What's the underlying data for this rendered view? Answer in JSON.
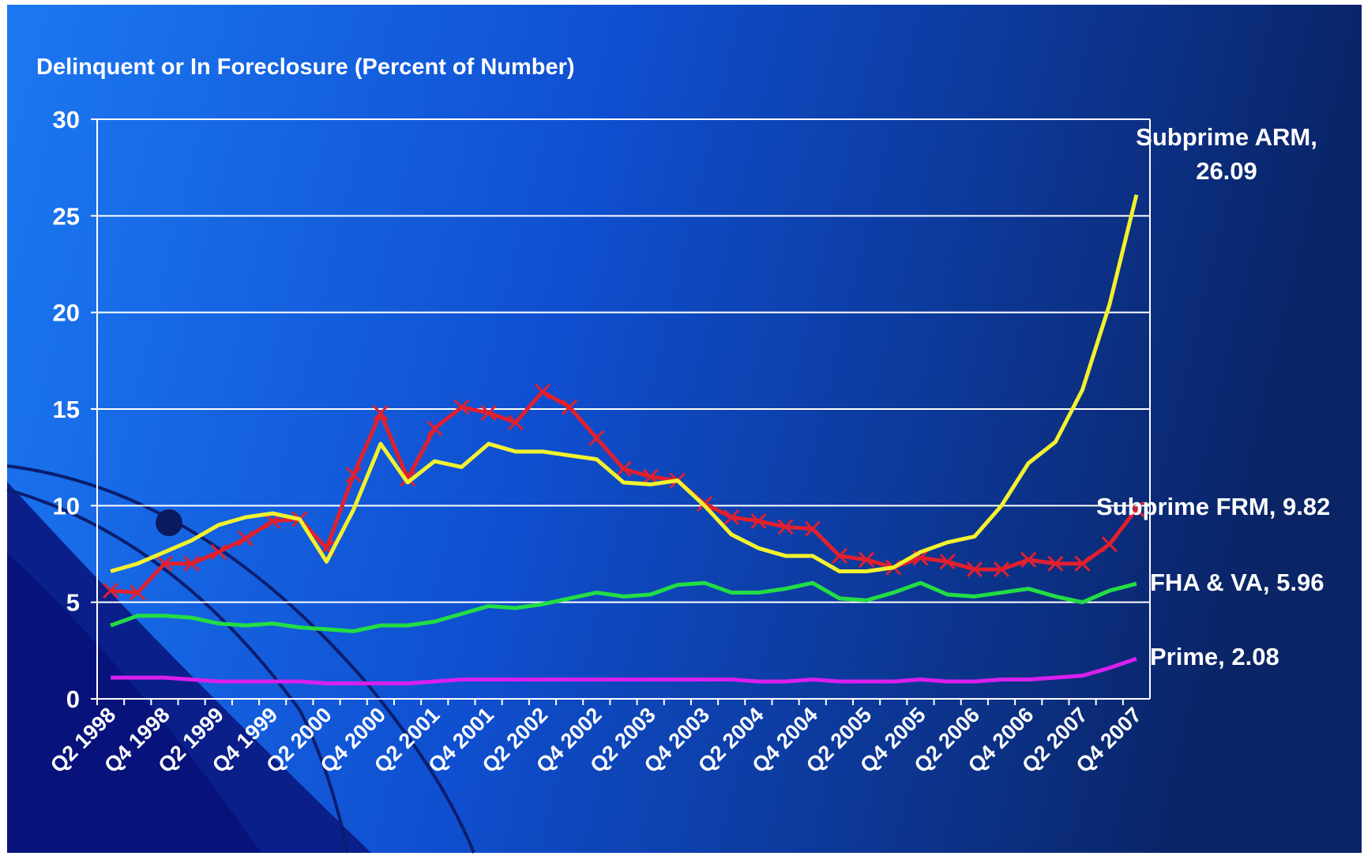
{
  "chart_data": {
    "type": "line",
    "title": "Delinquent or In Foreclosure (Percent of Number)",
    "categories": [
      "Q2 1998",
      null,
      "Q4 1998",
      null,
      "Q2 1999",
      null,
      "Q4 1999",
      null,
      "Q2 2000",
      null,
      "Q4 2000",
      null,
      "Q2 2001",
      null,
      "Q4 2001",
      null,
      "Q2 2002",
      null,
      "Q4 2002",
      null,
      "Q2 2003",
      null,
      "Q4 2003",
      null,
      "Q2 2004",
      null,
      "Q4 2004",
      null,
      "Q2 2005",
      null,
      "Q4 2005",
      null,
      "Q2 2006",
      null,
      "Q4 2006",
      null,
      "Q2 2007",
      null,
      "Q4 2007"
    ],
    "series": [
      {
        "label": [
          "Subprime ARM,",
          "26.09"
        ],
        "color": "#f2f22e",
        "values": [
          6.6,
          7.0,
          7.6,
          8.2,
          9.0,
          9.4,
          9.6,
          9.3,
          7.1,
          9.8,
          13.2,
          11.2,
          12.3,
          12.0,
          13.2,
          12.8,
          12.8,
          12.6,
          12.4,
          11.2,
          11.1,
          11.3,
          10.0,
          8.5,
          7.8,
          7.4,
          7.4,
          6.6,
          6.6,
          6.8,
          7.6,
          8.1,
          8.4,
          10.0,
          12.2,
          13.3,
          16.0,
          20.4,
          26.09
        ]
      },
      {
        "label": [
          "Subprime FRM, 9.82"
        ],
        "color": "#e0202e",
        "marker": "x",
        "values": [
          5.6,
          5.5,
          7.0,
          7.0,
          7.6,
          8.3,
          9.2,
          9.3,
          7.8,
          11.6,
          14.8,
          11.4,
          14.0,
          15.1,
          14.8,
          14.3,
          15.9,
          15.1,
          13.5,
          11.9,
          11.5,
          11.3,
          10.1,
          9.4,
          9.2,
          8.9,
          8.8,
          7.4,
          7.2,
          6.8,
          7.3,
          7.1,
          6.7,
          6.7,
          7.2,
          7.0,
          7.0,
          8.0,
          9.82
        ]
      },
      {
        "label": [
          "FHA & VA, 5.96"
        ],
        "color": "#22dd44",
        "values": [
          3.8,
          4.3,
          4.3,
          4.2,
          3.9,
          3.8,
          3.9,
          3.7,
          3.6,
          3.5,
          3.8,
          3.8,
          4.0,
          4.4,
          4.8,
          4.7,
          4.9,
          5.2,
          5.5,
          5.3,
          5.4,
          5.9,
          6.0,
          5.5,
          5.5,
          5.7,
          6.0,
          5.2,
          5.1,
          5.5,
          6.0,
          5.4,
          5.3,
          5.5,
          5.7,
          5.3,
          5.0,
          5.6,
          5.96
        ]
      },
      {
        "label": [
          "Prime, 2.08"
        ],
        "color": "#d820ee",
        "values": [
          1.1,
          1.1,
          1.1,
          1.0,
          0.9,
          0.9,
          0.9,
          0.9,
          0.8,
          0.8,
          0.8,
          0.8,
          0.9,
          1.0,
          1.0,
          1.0,
          1.0,
          1.0,
          1.0,
          1.0,
          1.0,
          1.0,
          1.0,
          1.0,
          0.9,
          0.9,
          1.0,
          0.9,
          0.9,
          0.9,
          1.0,
          0.9,
          0.9,
          1.0,
          1.0,
          1.1,
          1.2,
          1.6,
          2.08
        ]
      }
    ],
    "ylim": [
      0,
      30
    ],
    "yticks": [
      0,
      5,
      10,
      15,
      20,
      25,
      30
    ],
    "grid": true
  }
}
